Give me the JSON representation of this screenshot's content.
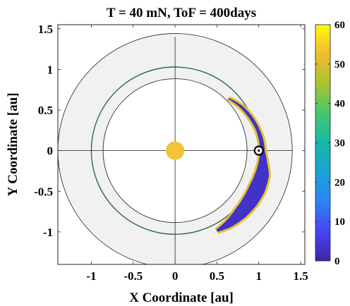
{
  "chart_data": {
    "type": "scatter",
    "title": "T = 40 mN, ToF = 400days",
    "xlabel": "X Coordinate [au]",
    "ylabel": "Y Coordinate [au]",
    "xlim": [
      -1.4,
      1.55
    ],
    "ylim": [
      -1.4,
      1.55
    ],
    "xticks": [
      -1,
      -0.5,
      0,
      0.5,
      1,
      1.5
    ],
    "yticks": [
      -1,
      -0.5,
      0,
      0.5,
      1,
      1.5
    ],
    "xtick_labels": [
      "-1",
      "-0.5",
      "0",
      "0.5",
      "1",
      "1.5"
    ],
    "ytick_labels": [
      "-1",
      "-0.5",
      "0",
      "0.5",
      "1",
      "1.5"
    ],
    "grid": false,
    "annulus": {
      "inner_radius": 0.86,
      "outer_radius": 1.4,
      "fill": "#f1f1f1"
    },
    "earth_orbit": {
      "radius": 1.0,
      "color": "#2e6b4c"
    },
    "sun": {
      "x": 0,
      "y": 0,
      "radius": 0.11,
      "color": "#f2c334"
    },
    "earth": {
      "x": 1.0,
      "y": 0.0
    },
    "reachable_region": {
      "angle_range_deg": [
        -63,
        45
      ],
      "inner_radius": [
        [
          -63,
          1.07
        ],
        [
          -55,
          1.04
        ],
        [
          -45,
          1.0
        ],
        [
          -35,
          0.98
        ],
        [
          -25,
          0.97
        ],
        [
          -15,
          0.98
        ],
        [
          -8,
          0.99
        ],
        [
          0,
          1.0
        ],
        [
          8,
          0.99
        ],
        [
          15,
          0.98
        ],
        [
          25,
          0.95
        ],
        [
          35,
          0.92
        ],
        [
          45,
          0.88
        ]
      ],
      "outer_radius": [
        [
          -63,
          1.14
        ],
        [
          -55,
          1.17
        ],
        [
          -45,
          1.19
        ],
        [
          -35,
          1.2
        ],
        [
          -25,
          1.2
        ],
        [
          -15,
          1.18
        ],
        [
          -8,
          1.13
        ],
        [
          0,
          1.09
        ],
        [
          8,
          1.08
        ],
        [
          15,
          1.06
        ],
        [
          25,
          1.03
        ],
        [
          35,
          0.99
        ],
        [
          45,
          0.93
        ]
      ],
      "core_value": 3,
      "edge_value": 55
    },
    "colorbar": {
      "min": 0,
      "max": 60,
      "ticks": [
        0,
        10,
        20,
        30,
        40,
        50,
        60
      ],
      "tick_labels": [
        "0",
        "10",
        "20",
        "30",
        "40",
        "50",
        "60"
      ],
      "colormap": "parula",
      "colors": [
        "#3e26a8",
        "#4743f8",
        "#2d84f4",
        "#19a3d7",
        "#14b9a7",
        "#45c66f",
        "#a8c431",
        "#f3ba2f",
        "#f9fb0e"
      ]
    }
  }
}
